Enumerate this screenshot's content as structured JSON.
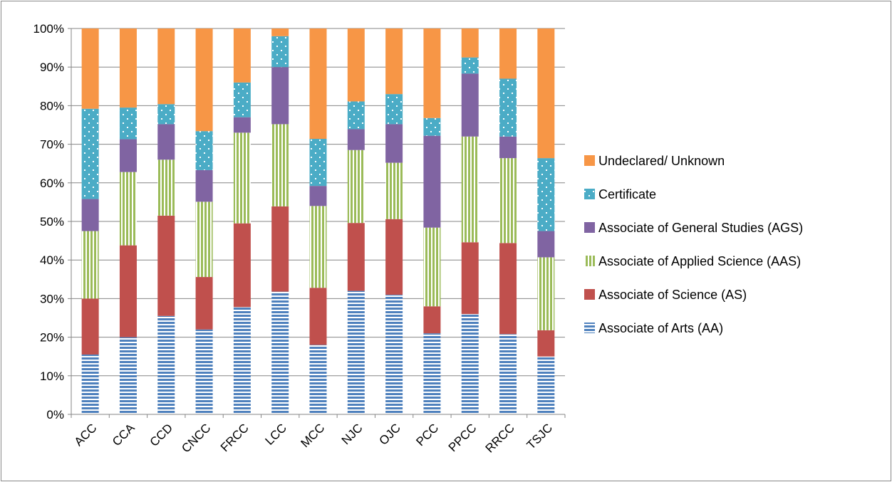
{
  "chart_data": {
    "type": "bar",
    "stacked": true,
    "percent": true,
    "categories": [
      "ACC",
      "CCA",
      "CCD",
      "CNCC",
      "FRCC",
      "LCC",
      "MCC",
      "NJC",
      "OJC",
      "PCC",
      "PPCC",
      "RRCC",
      "TSJC"
    ],
    "series": [
      {
        "name": "Associate of Arts (AA)",
        "color": "#4f81bd",
        "pattern": "horizontal-stripes",
        "values": [
          15.5,
          20,
          25.5,
          22,
          27.8,
          31.8,
          18,
          32,
          31,
          21,
          26,
          20.8,
          15
        ]
      },
      {
        "name": "Associate of Science (AS)",
        "color": "#c0504d",
        "pattern": "solid",
        "values": [
          14.5,
          23.8,
          26,
          13.6,
          21.7,
          22.1,
          14.8,
          17.6,
          19.6,
          7,
          18.6,
          23.6,
          6.8
        ]
      },
      {
        "name": "Associate of Applied Science (AAS)",
        "color": "#9bbb59",
        "pattern": "vertical-stripes",
        "values": [
          17.5,
          19,
          14.5,
          19.5,
          23.5,
          21.3,
          21.2,
          18.9,
          14.6,
          20.4,
          27.4,
          22,
          18.9
        ]
      },
      {
        "name": "Associate of General Studies (AGS)",
        "color": "#8064a2",
        "pattern": "solid",
        "values": [
          8.3,
          8.5,
          9.2,
          8.2,
          4,
          14.8,
          5.2,
          5.4,
          10,
          23.8,
          16.3,
          5.6,
          6.8
        ]
      },
      {
        "name": "Certificate",
        "color": "#4bacc6",
        "pattern": "dots",
        "values": [
          23.4,
          8.2,
          5.2,
          10.1,
          9,
          8,
          12.2,
          7.2,
          7.8,
          4.6,
          4.2,
          15,
          18.9
        ]
      },
      {
        "name": "Undeclared/ Unknown",
        "color": "#f79646",
        "pattern": "solid",
        "values": [
          20.8,
          20.5,
          19.6,
          26.6,
          14,
          2,
          28.6,
          18.9,
          17,
          23.2,
          7.5,
          13,
          33.6
        ]
      }
    ],
    "y_ticks": [
      "0%",
      "10%",
      "20%",
      "30%",
      "40%",
      "50%",
      "60%",
      "70%",
      "80%",
      "90%",
      "100%"
    ],
    "ylim": [
      0,
      100
    ],
    "grid": true,
    "legend_position": "right",
    "legend_order": [
      "Undeclared/ Unknown",
      "Certificate",
      "Associate of General Studies (AGS)",
      "Associate of Applied Science (AAS)",
      "Associate of Science (AS)",
      "Associate of Arts (AA)"
    ],
    "title": "",
    "xlabel": "",
    "ylabel": ""
  }
}
